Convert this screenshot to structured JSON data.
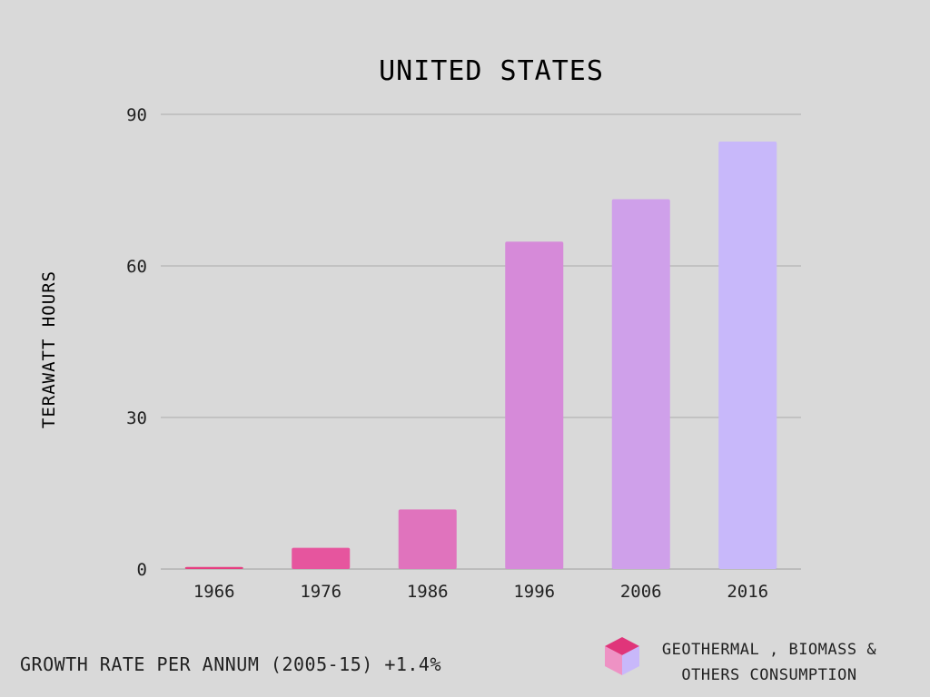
{
  "chart_data": {
    "type": "bar",
    "title": "UNITED STATES",
    "xlabel": "",
    "ylabel": "TERAWATT HOURS",
    "categories": [
      "1966",
      "1976",
      "1986",
      "1996",
      "2006",
      "2016"
    ],
    "values": [
      0.4,
      4.2,
      11.8,
      64.8,
      73.2,
      84.6
    ],
    "ylim": [
      0,
      90
    ],
    "yticks": [
      0,
      30,
      60,
      90
    ],
    "grid": true,
    "bar_colors": [
      "#e63d7f",
      "#e6559e",
      "#e073bd",
      "#d68ad9",
      "#cfa0ea",
      "#c8b8fa"
    ],
    "legend": {
      "label": "GEOTHERMAL , BIOMASS & OTHERS CONSUMPTION",
      "placement": "bottom-right"
    }
  },
  "footer": {
    "growth_text": "GROWTH RATE PER ANNUM (2005-15) +1.4%"
  },
  "colors": {
    "background": "#d9d9d9",
    "gridline": "#aaaaaa",
    "text": "#222222"
  }
}
